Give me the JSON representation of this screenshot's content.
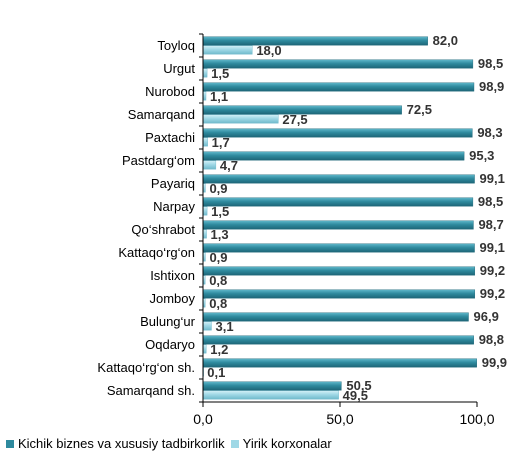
{
  "colors": {
    "series_primary": "#2e8a9e",
    "series_secondary": "#9fd8e6",
    "axis": "#000000"
  },
  "chart_data": {
    "type": "bar",
    "orientation": "horizontal",
    "categories": [
      "Toyloq",
      "Urgut",
      "Nurobod",
      "Samarqand",
      "Paxtachi",
      "Pastdarg‘om",
      "Payariq",
      "Narpay",
      "Qo‘shrabot",
      "Kattaqo‘rg‘on",
      "Ishtixon",
      "Jomboy",
      "Bulung‘ur",
      "Oqdaryo",
      "Kattaqo‘rg‘on  sh.",
      "Samarqand sh."
    ],
    "series": [
      {
        "name": "Kichik biznes va xususiy tadbirkorlik",
        "values": [
          82.0,
          98.5,
          98.9,
          72.5,
          98.3,
          95.3,
          99.1,
          98.5,
          98.7,
          99.1,
          99.2,
          99.2,
          96.9,
          98.8,
          99.9,
          50.5
        ],
        "labels": [
          "82,0",
          "98,5",
          "98,9",
          "72,5",
          "98,3",
          "95,3",
          "99,1",
          "98,5",
          "98,7",
          "99,1",
          "99,2",
          "99,2",
          "96,9",
          "98,8",
          "99,9",
          "50,5"
        ]
      },
      {
        "name": "Yirik korxonalar",
        "values": [
          18.0,
          1.5,
          1.1,
          27.5,
          1.7,
          4.7,
          0.9,
          1.5,
          1.3,
          0.9,
          0.8,
          0.8,
          3.1,
          1.2,
          0.1,
          49.5
        ],
        "labels": [
          "18,0",
          "1,5",
          "1,1",
          "27,5",
          "1,7",
          "4,7",
          "0,9",
          "1,5",
          "1,3",
          "0,9",
          "0,8",
          "0,8",
          "3,1",
          "1,2",
          "0,1",
          "49,5"
        ]
      }
    ],
    "x_ticks": [
      "0,0",
      "50,0",
      "100,0"
    ],
    "xlim": [
      0,
      100
    ],
    "legend_position": "bottom",
    "grid": false
  }
}
